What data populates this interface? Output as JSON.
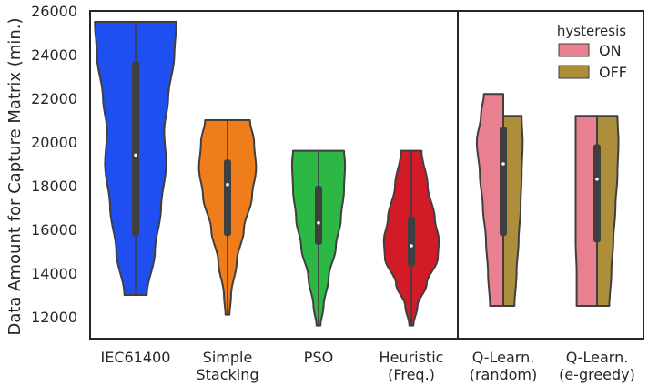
{
  "chart_data": {
    "type": "violin",
    "ylabel": "Data Amount for Capture Matrix (min.)",
    "ylim": [
      11000,
      26000
    ],
    "yticks": [
      12000,
      14000,
      16000,
      18000,
      20000,
      22000,
      24000,
      26000
    ],
    "grid": false,
    "legend": {
      "title": "hysteresis",
      "placement": "top-right",
      "entries": [
        {
          "label": "ON",
          "color": "#e9808f"
        },
        {
          "label": "OFF",
          "color": "#ad8e3b"
        }
      ]
    },
    "groups": [
      {
        "label_lines": [
          "IEC61400"
        ],
        "color": "#1f4ff0",
        "split": false,
        "min": 13000,
        "max": 25500,
        "q1": 15700,
        "median": 19400,
        "q3": 23700,
        "profile": [
          [
            13000,
            0.22
          ],
          [
            15000,
            0.38
          ],
          [
            17000,
            0.5
          ],
          [
            19000,
            0.6
          ],
          [
            20500,
            0.56
          ],
          [
            22000,
            0.64
          ],
          [
            24000,
            0.76
          ],
          [
            25500,
            0.8
          ]
        ]
      },
      {
        "label_lines": [
          "Simple",
          "Stacking"
        ],
        "color": "#ef7d1c",
        "split": false,
        "min": 12100,
        "max": 21000,
        "q1": 15700,
        "median": 18050,
        "q3": 19200,
        "profile": [
          [
            12100,
            0.04
          ],
          [
            13000,
            0.07
          ],
          [
            14500,
            0.18
          ],
          [
            16000,
            0.32
          ],
          [
            17500,
            0.48
          ],
          [
            18800,
            0.56
          ],
          [
            20000,
            0.52
          ],
          [
            21000,
            0.44
          ]
        ]
      },
      {
        "label_lines": [
          "PSO"
        ],
        "color": "#2db845",
        "split": false,
        "min": 11600,
        "max": 19600,
        "q1": 15300,
        "median": 16300,
        "q3": 18000,
        "profile": [
          [
            11600,
            0.04
          ],
          [
            12500,
            0.1
          ],
          [
            13800,
            0.2
          ],
          [
            15200,
            0.34
          ],
          [
            16500,
            0.44
          ],
          [
            17800,
            0.5
          ],
          [
            19000,
            0.52
          ],
          [
            19600,
            0.5
          ]
        ]
      },
      {
        "label_lines": [
          "Heuristic",
          "(Freq.)"
        ],
        "color": "#d21b27",
        "split": false,
        "min": 11600,
        "max": 19600,
        "q1": 14300,
        "median": 15250,
        "q3": 16600,
        "profile": [
          [
            11600,
            0.04
          ],
          [
            12500,
            0.12
          ],
          [
            13500,
            0.3
          ],
          [
            14700,
            0.52
          ],
          [
            15500,
            0.54
          ],
          [
            16500,
            0.46
          ],
          [
            18000,
            0.32
          ],
          [
            19600,
            0.2
          ]
        ]
      },
      {
        "label_lines": [
          "Q-Learn.",
          "(random)"
        ],
        "split": true,
        "min": 12500,
        "max": 22200,
        "q1": 15700,
        "median": 19000,
        "q3": 20700,
        "on": {
          "min": 12500,
          "max": 22200,
          "profile": [
            [
              12500,
              0.26
            ],
            [
              14000,
              0.3
            ],
            [
              15500,
              0.34
            ],
            [
              17000,
              0.4
            ],
            [
              18500,
              0.46
            ],
            [
              20000,
              0.52
            ],
            [
              21200,
              0.44
            ],
            [
              22200,
              0.38
            ]
          ]
        },
        "off": {
          "min": 12500,
          "max": 21200,
          "profile": [
            [
              12500,
              0.22
            ],
            [
              14000,
              0.26
            ],
            [
              15500,
              0.3
            ],
            [
              17000,
              0.34
            ],
            [
              18500,
              0.36
            ],
            [
              20000,
              0.38
            ],
            [
              21200,
              0.36
            ]
          ]
        }
      },
      {
        "label_lines": [
          "Q-Learn.",
          "(e-greedy)"
        ],
        "split": true,
        "min": 12500,
        "max": 21200,
        "q1": 15400,
        "median": 18300,
        "q3": 19900,
        "on": {
          "min": 12500,
          "max": 21200,
          "profile": [
            [
              12500,
              0.4
            ],
            [
              14000,
              0.4
            ],
            [
              15500,
              0.42
            ],
            [
              17000,
              0.42
            ],
            [
              18500,
              0.42
            ],
            [
              20000,
              0.42
            ],
            [
              21200,
              0.42
            ]
          ]
        },
        "off": {
          "min": 12500,
          "max": 21200,
          "profile": [
            [
              12500,
              0.24
            ],
            [
              14000,
              0.28
            ],
            [
              15500,
              0.32
            ],
            [
              17000,
              0.36
            ],
            [
              18500,
              0.4
            ],
            [
              20000,
              0.42
            ],
            [
              21200,
              0.4
            ]
          ]
        }
      }
    ]
  }
}
